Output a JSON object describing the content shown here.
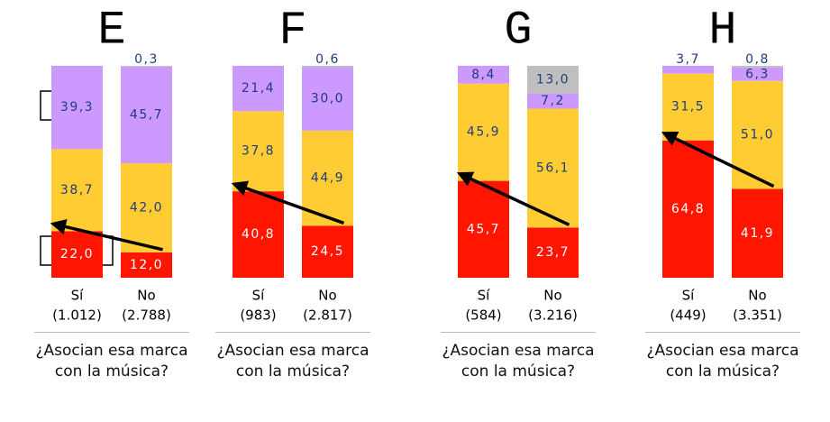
{
  "chart_data": [
    {
      "type": "bar",
      "stacked": true,
      "title": "E",
      "categories": [
        "Sí",
        "No"
      ],
      "sample_sizes": [
        "(1.012)",
        "(2.788)"
      ],
      "question": "¿Asocian esa marca con la música?",
      "ylim": [
        0,
        100
      ],
      "series": [
        {
          "color": "#ff1500",
          "values": [
            22.0,
            12.0
          ],
          "value_labels": [
            "22,0",
            "12,0"
          ]
        },
        {
          "color": "#ffcc33",
          "values": [
            38.7,
            42.0
          ],
          "value_labels": [
            "38,7",
            "42,0"
          ]
        },
        {
          "color": "#cc99ff",
          "values": [
            39.3,
            45.7
          ],
          "value_labels": [
            "39,3",
            "45,7"
          ]
        },
        {
          "color": "#bfbfbf",
          "values": [
            null,
            0.3
          ],
          "value_labels": [
            null,
            "0,3"
          ]
        }
      ]
    },
    {
      "type": "bar",
      "stacked": true,
      "title": "F",
      "categories": [
        "Sí",
        "No"
      ],
      "sample_sizes": [
        "(983)",
        "(2.817)"
      ],
      "question": "¿Asocian esa marca con la música?",
      "ylim": [
        0,
        100
      ],
      "series": [
        {
          "color": "#ff1500",
          "values": [
            40.8,
            24.5
          ],
          "value_labels": [
            "40,8",
            "24,5"
          ]
        },
        {
          "color": "#ffcc33",
          "values": [
            37.8,
            44.9
          ],
          "value_labels": [
            "37,8",
            "44,9"
          ]
        },
        {
          "color": "#cc99ff",
          "values": [
            21.4,
            30.0
          ],
          "value_labels": [
            "21,4",
            "30,0"
          ]
        },
        {
          "color": "#bfbfbf",
          "values": [
            null,
            0.6
          ],
          "value_labels": [
            null,
            "0,6"
          ]
        }
      ]
    },
    {
      "type": "bar",
      "stacked": true,
      "title": "G",
      "categories": [
        "Sí",
        "No"
      ],
      "sample_sizes": [
        "(584)",
        "(3.216)"
      ],
      "question": "¿Asocian esa marca con la música?",
      "ylim": [
        0,
        100
      ],
      "series": [
        {
          "color": "#ff1500",
          "values": [
            45.7,
            23.7
          ],
          "value_labels": [
            "45,7",
            "23,7"
          ]
        },
        {
          "color": "#ffcc33",
          "values": [
            45.9,
            56.1
          ],
          "value_labels": [
            "45,9",
            "56,1"
          ]
        },
        {
          "color": "#cc99ff",
          "values": [
            8.4,
            7.2
          ],
          "value_labels": [
            "8,4",
            "7,2"
          ]
        },
        {
          "color": "#bfbfbf",
          "values": [
            null,
            13.0
          ],
          "value_labels": [
            null,
            "13,0"
          ]
        }
      ]
    },
    {
      "type": "bar",
      "stacked": true,
      "title": "H",
      "categories": [
        "Sí",
        "No"
      ],
      "sample_sizes": [
        "(449)",
        "(3.351)"
      ],
      "question": "¿Asocian esa marca con la música?",
      "ylim": [
        0,
        100
      ],
      "series": [
        {
          "color": "#ff1500",
          "values": [
            64.8,
            41.9
          ],
          "value_labels": [
            "64,8",
            "41,9"
          ]
        },
        {
          "color": "#ffcc33",
          "values": [
            31.5,
            51.0
          ],
          "value_labels": [
            "31,5",
            "51,0"
          ]
        },
        {
          "color": "#cc99ff",
          "values": [
            3.7,
            6.3
          ],
          "value_labels": [
            "3,7",
            "6,3"
          ]
        },
        {
          "color": "#bfbfbf",
          "values": [
            null,
            0.8
          ],
          "value_labels": [
            null,
            "0,8"
          ]
        }
      ]
    }
  ]
}
